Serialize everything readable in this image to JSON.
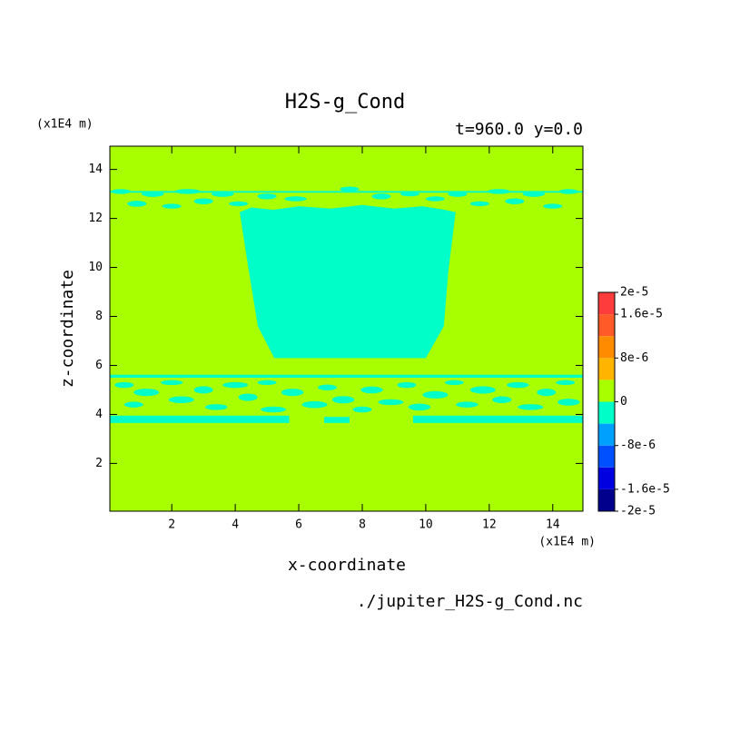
{
  "chart_data": {
    "type": "contour",
    "title": "H2S-g_Cond",
    "subtitle": "t=960.0 y=0.0",
    "x_label": "x-coordinate",
    "y_label": "z-coordinate",
    "x_unit": "(x1E4 m)",
    "y_unit": "(x1E4 m)",
    "footnote": "./jupiter_H2S-g_Cond.nc",
    "xlim": [
      0.05,
      14.95
    ],
    "ylim": [
      0.05,
      14.95
    ],
    "xticks": [
      2,
      4,
      6,
      8,
      10,
      12,
      14
    ],
    "yticks": [
      2,
      4,
      6,
      8,
      10,
      12,
      14
    ],
    "levels": [
      -2e-05,
      -1.6e-05,
      -1.2e-05,
      -8e-06,
      -4e-06,
      0,
      4e-06,
      8e-06,
      1.2e-05,
      1.6e-05,
      2e-05
    ],
    "colors": [
      "#00008c",
      "#0000e0",
      "#0050ff",
      "#00a0ff",
      "#00ffc8",
      "#a8ff00",
      "#ffb400",
      "#ff8c00",
      "#ff5a28",
      "#ff3c3c"
    ],
    "colorbar_ticks": [
      {
        "value": 2e-05,
        "label": "2e-5"
      },
      {
        "value": 1.6e-05,
        "label": "1.6e-5"
      },
      {
        "value": 8e-06,
        "label": "8e-6"
      },
      0,
      {
        "value": -8e-06,
        "label": "-8e-6"
      },
      {
        "value": -1.6e-05,
        "label": "-1.6e-5"
      },
      {
        "value": -2e-05,
        "label": "-2e-5"
      }
    ],
    "background_level": 5,
    "feature_level": 4,
    "regions": [
      [
        [
          4.14,
          12.26
        ],
        [
          4.5,
          12.45
        ],
        [
          5.2,
          12.35
        ],
        [
          6.0,
          12.5
        ],
        [
          7.0,
          12.4
        ],
        [
          8.0,
          12.55
        ],
        [
          9.0,
          12.4
        ],
        [
          9.9,
          12.5
        ],
        [
          10.6,
          12.35
        ],
        [
          10.94,
          12.26
        ],
        [
          10.71,
          9.83
        ],
        [
          10.57,
          7.6
        ],
        [
          10.0,
          6.3
        ],
        [
          5.23,
          6.3
        ],
        [
          4.71,
          7.6
        ],
        [
          4.43,
          9.83
        ]
      ]
    ],
    "strips": [
      [
        0.05,
        5.5,
        14.95,
        5.62
      ],
      [
        0.05,
        3.65,
        5.7,
        3.95
      ],
      [
        9.6,
        3.65,
        14.95,
        3.95
      ],
      [
        6.8,
        3.65,
        7.6,
        3.9
      ],
      [
        0.05,
        13.05,
        14.95,
        13.12
      ]
    ],
    "patches": [
      [
        0.5,
        5.2,
        0.3,
        0.12
      ],
      [
        1.2,
        4.9,
        0.4,
        0.15
      ],
      [
        0.8,
        4.4,
        0.3,
        0.12
      ],
      [
        2.0,
        5.3,
        0.35,
        0.1
      ],
      [
        2.3,
        4.6,
        0.4,
        0.14
      ],
      [
        3.0,
        5.0,
        0.3,
        0.15
      ],
      [
        3.4,
        4.3,
        0.35,
        0.12
      ],
      [
        4.0,
        5.2,
        0.4,
        0.12
      ],
      [
        4.4,
        4.7,
        0.3,
        0.15
      ],
      [
        5.0,
        5.3,
        0.3,
        0.1
      ],
      [
        5.2,
        4.2,
        0.4,
        0.12
      ],
      [
        5.8,
        4.9,
        0.35,
        0.15
      ],
      [
        6.5,
        4.4,
        0.4,
        0.14
      ],
      [
        6.9,
        5.1,
        0.3,
        0.12
      ],
      [
        7.4,
        4.6,
        0.35,
        0.15
      ],
      [
        8.0,
        4.2,
        0.3,
        0.12
      ],
      [
        8.3,
        5.0,
        0.35,
        0.14
      ],
      [
        8.9,
        4.5,
        0.4,
        0.12
      ],
      [
        9.4,
        5.2,
        0.3,
        0.12
      ],
      [
        9.8,
        4.3,
        0.35,
        0.14
      ],
      [
        10.3,
        4.8,
        0.4,
        0.15
      ],
      [
        10.9,
        5.3,
        0.3,
        0.1
      ],
      [
        11.3,
        4.4,
        0.35,
        0.12
      ],
      [
        11.8,
        5.0,
        0.4,
        0.15
      ],
      [
        12.4,
        4.6,
        0.3,
        0.14
      ],
      [
        12.9,
        5.2,
        0.35,
        0.12
      ],
      [
        13.3,
        4.3,
        0.4,
        0.12
      ],
      [
        13.8,
        4.9,
        0.3,
        0.15
      ],
      [
        14.4,
        5.3,
        0.3,
        0.1
      ],
      [
        14.5,
        4.5,
        0.35,
        0.14
      ],
      [
        0.4,
        13.1,
        0.3,
        0.1
      ],
      [
        0.9,
        12.6,
        0.3,
        0.12
      ],
      [
        1.4,
        13.0,
        0.35,
        0.12
      ],
      [
        2.0,
        12.5,
        0.3,
        0.1
      ],
      [
        2.5,
        13.1,
        0.4,
        0.1
      ],
      [
        3.0,
        12.7,
        0.3,
        0.12
      ],
      [
        3.6,
        13.0,
        0.35,
        0.12
      ],
      [
        4.1,
        12.6,
        0.3,
        0.1
      ],
      [
        5.0,
        12.9,
        0.3,
        0.12
      ],
      [
        5.9,
        12.8,
        0.35,
        0.1
      ],
      [
        7.6,
        13.2,
        0.3,
        0.1
      ],
      [
        8.6,
        12.9,
        0.3,
        0.12
      ],
      [
        9.5,
        13.0,
        0.3,
        0.1
      ],
      [
        10.3,
        12.8,
        0.3,
        0.1
      ],
      [
        11.0,
        13.0,
        0.3,
        0.12
      ],
      [
        11.7,
        12.6,
        0.3,
        0.1
      ],
      [
        12.3,
        13.1,
        0.35,
        0.1
      ],
      [
        12.8,
        12.7,
        0.3,
        0.12
      ],
      [
        13.4,
        13.0,
        0.35,
        0.12
      ],
      [
        14.0,
        12.5,
        0.3,
        0.1
      ],
      [
        14.5,
        13.1,
        0.3,
        0.1
      ]
    ]
  }
}
